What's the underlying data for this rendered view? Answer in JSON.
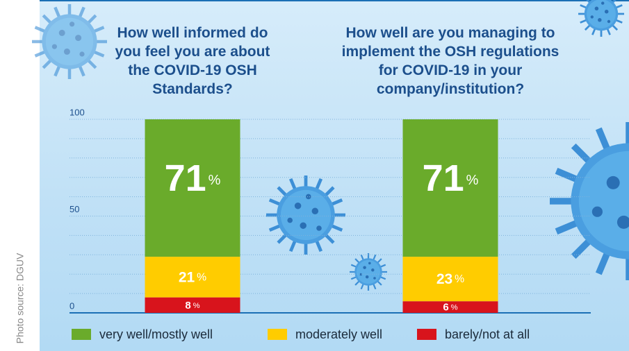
{
  "chart_data": {
    "type": "stacked_bar",
    "categories": [
      "How well informed do you feel you are about the COVID-19 OSH Standards?",
      "How well are you managing to implement the OSH regulations for COVID-19 in your company/institution?"
    ],
    "series": [
      {
        "name": "very well/mostly well",
        "color": "#6aab2b",
        "values": [
          71,
          71
        ]
      },
      {
        "name": "moderately well",
        "color": "#ffcc00",
        "values": [
          21,
          23
        ]
      },
      {
        "name": "barely/not at all",
        "color": "#d8141c",
        "values": [
          8,
          6
        ]
      }
    ],
    "unit": "%",
    "ylim": [
      0,
      100
    ],
    "yticks": [
      0,
      50,
      100
    ],
    "minor_yticks": [
      10,
      20,
      30,
      40,
      60,
      70,
      80,
      90
    ],
    "grid": true,
    "source": "Photo source: DGUV"
  }
}
